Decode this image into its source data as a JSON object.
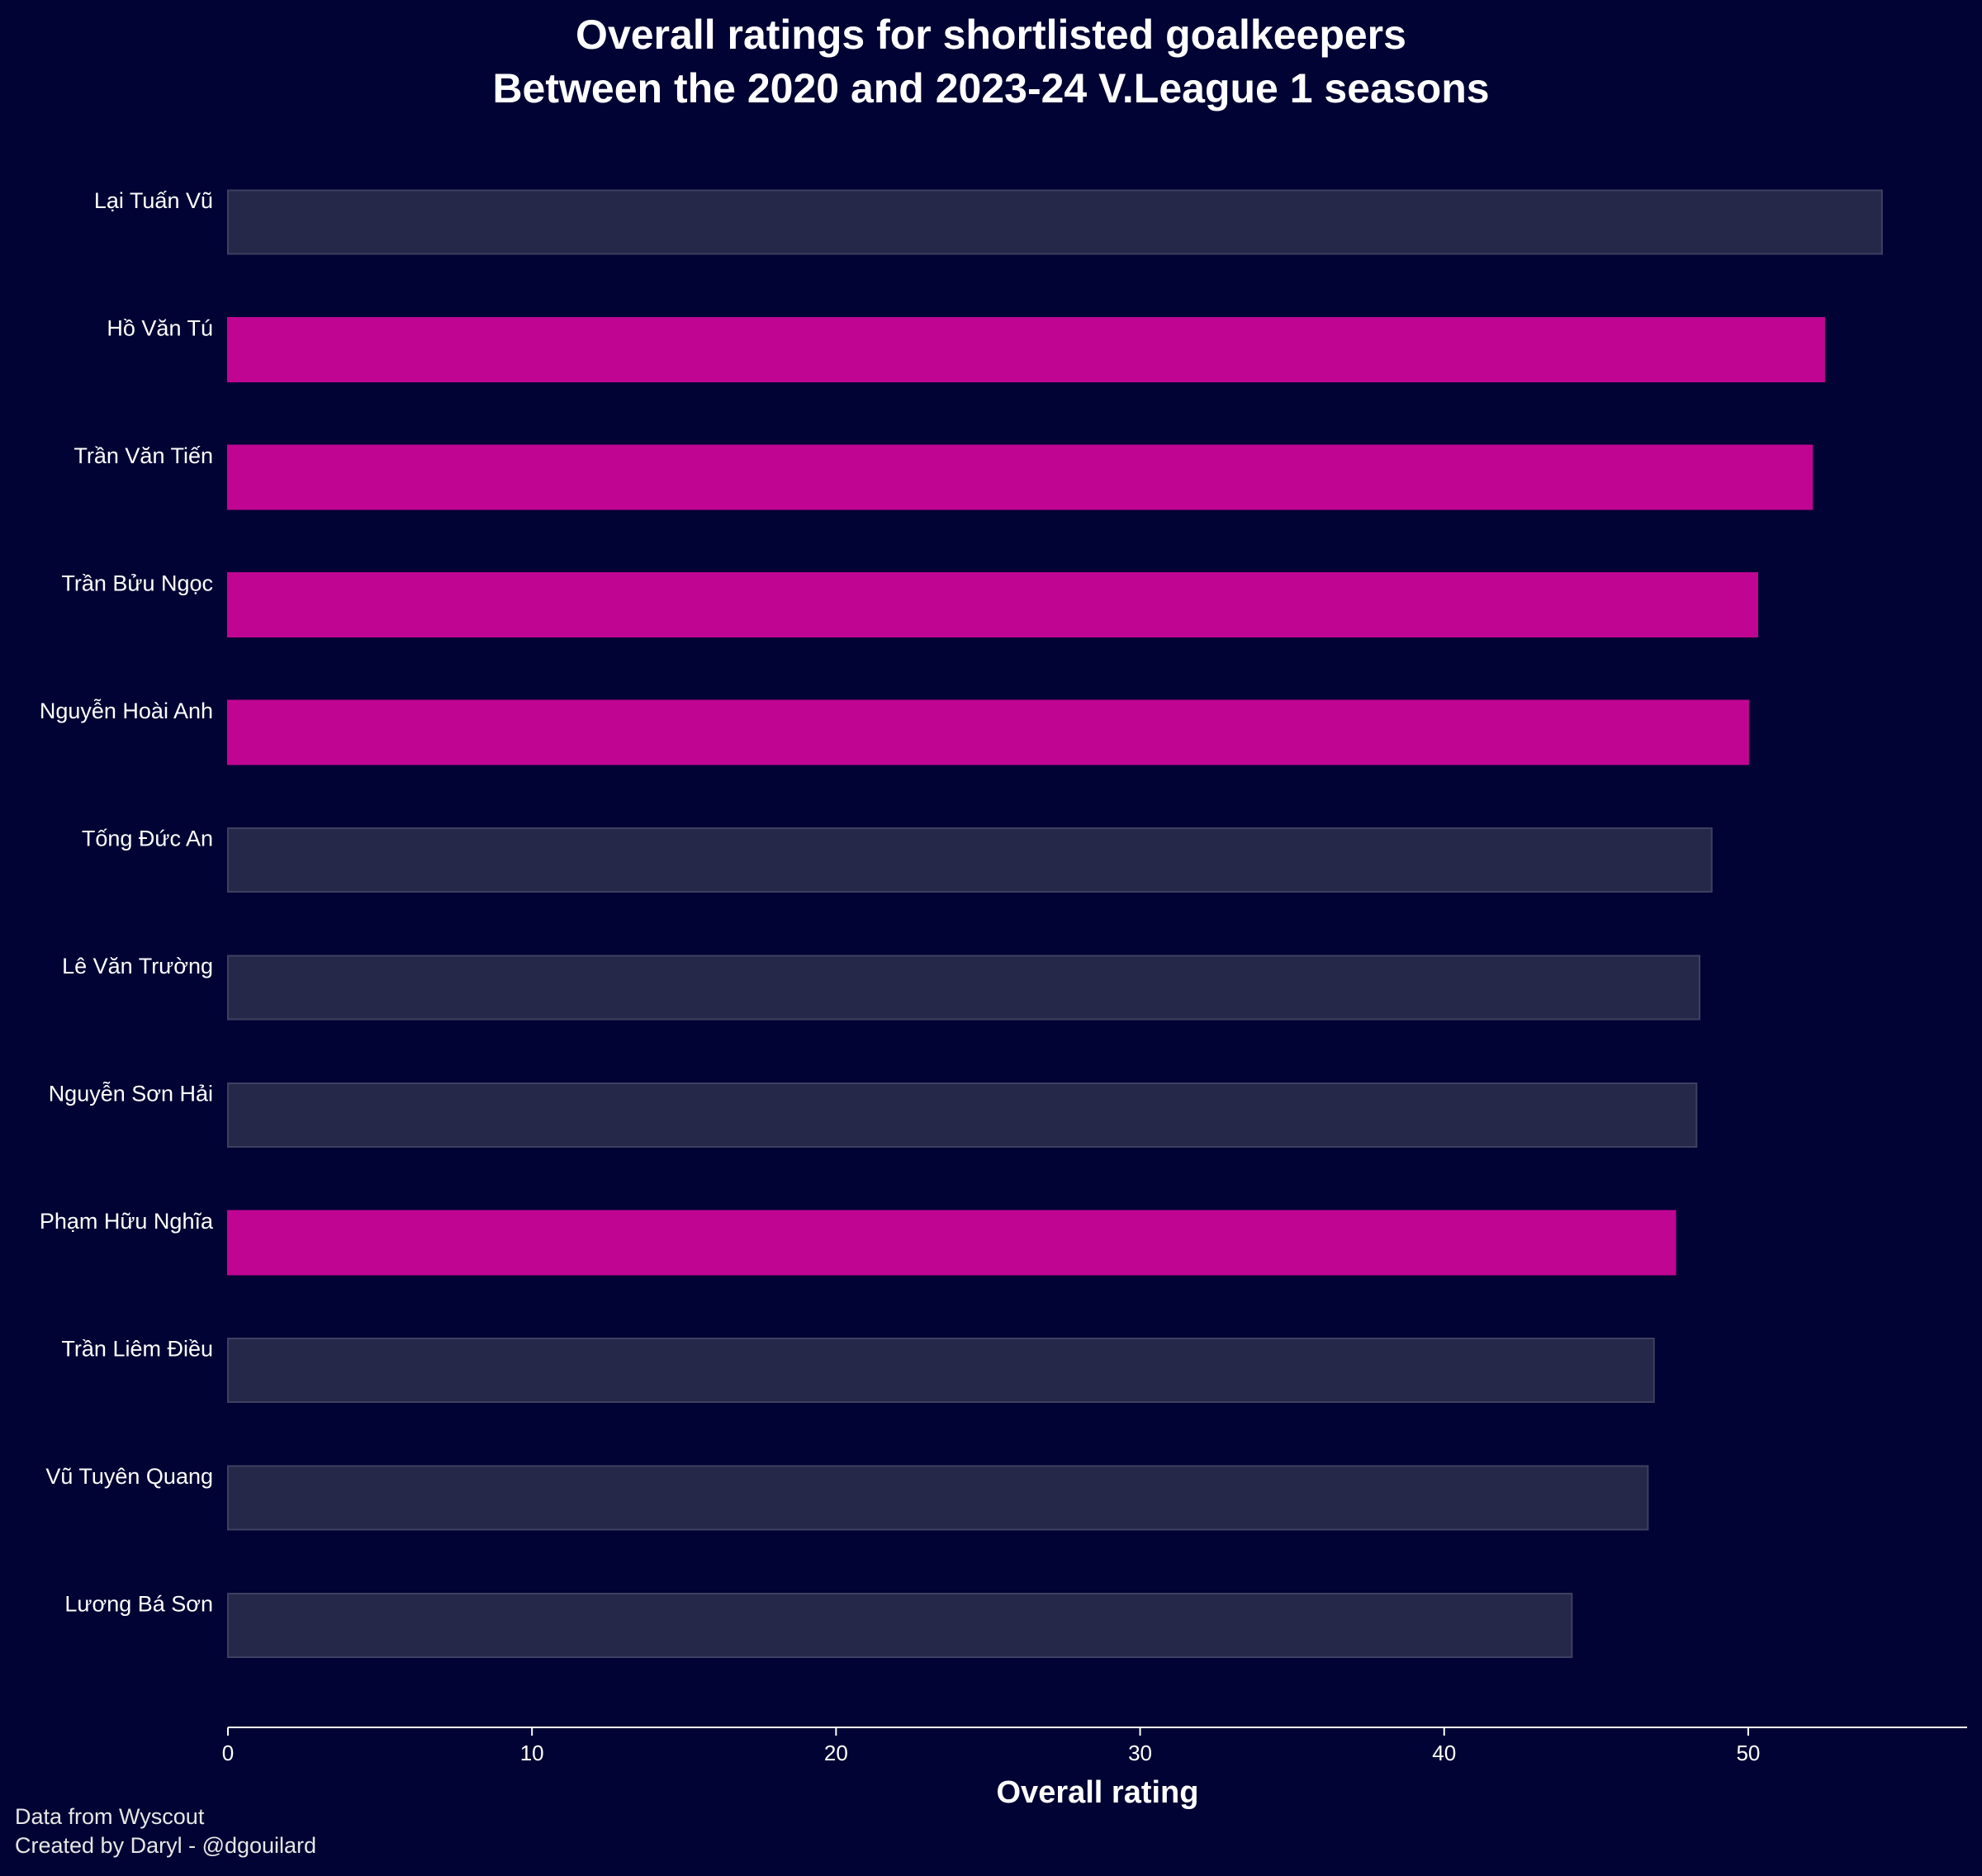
{
  "chart_data": {
    "type": "bar",
    "orientation": "horizontal",
    "title": [
      "Overall ratings for shortlisted goalkeepers",
      "Between the 2020 and 2023-24 V.League 1 seasons"
    ],
    "xlabel": "Overall rating",
    "ylabel": "",
    "xlim": [
      0,
      57.2
    ],
    "xticks": [
      0,
      10,
      20,
      30,
      40,
      50
    ],
    "grid": false,
    "legend": "none",
    "categories": [
      "Lại Tuấn Vũ",
      "Hồ Văn Tú",
      "Trần Văn Tiến",
      "Trần Bửu Ngọc",
      "Nguyễn Hoài Anh",
      "Tống Đức An",
      "Lê Văn Trường",
      "Nguyễn Sơn Hải",
      "Phạm Hữu Nghĩa",
      "Trần Liêm Điều",
      "Vũ Tuyên Quang",
      "Lương Bá Sơn"
    ],
    "values": [
      54.4,
      52.5,
      52.1,
      50.3,
      50.0,
      48.8,
      48.4,
      48.3,
      47.6,
      46.9,
      46.7,
      44.2
    ],
    "highlighted": [
      false,
      true,
      true,
      true,
      true,
      false,
      false,
      false,
      true,
      false,
      false,
      false
    ],
    "colors": {
      "background": "#000333",
      "bar_default": "#262849",
      "bar_default_edge": "#3d4060",
      "bar_highlight": "#c10593",
      "text": "#ffffff",
      "axis": "#ffffff"
    }
  },
  "footer": {
    "source": "Data from Wyscout",
    "credit": "Created by Daryl - @dgouilard"
  }
}
